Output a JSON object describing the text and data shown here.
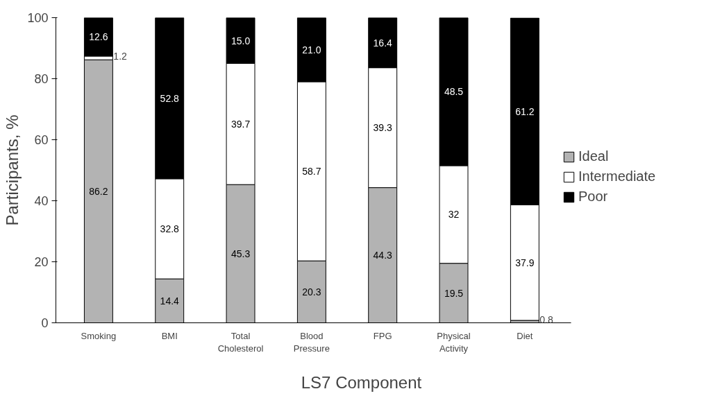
{
  "chart_data": {
    "type": "bar",
    "stacked": true,
    "xlabel": "LS7 Component",
    "ylabel": "Participants, %",
    "categories": [
      "Smoking",
      "BMI",
      "Total\nCholesterol",
      "Blood\nPressure",
      "FPG",
      "Physical\nActivity",
      "Diet"
    ],
    "series": [
      {
        "name": "Ideal",
        "color": "#b3b3b3",
        "values": [
          86.2,
          14.4,
          45.3,
          20.3,
          44.3,
          19.5,
          0.8
        ],
        "value_labels": [
          "86.2",
          "14.4",
          "45.3",
          "20.3",
          "44.3",
          "19.5",
          "0.8"
        ]
      },
      {
        "name": "Intermediate",
        "color": "#ffffff",
        "values": [
          1.2,
          32.8,
          39.7,
          58.7,
          39.3,
          32,
          37.9
        ],
        "value_labels": [
          "1.2",
          "32.8",
          "39.7",
          "58.7",
          "39.3",
          "32",
          "37.9"
        ]
      },
      {
        "name": "Poor",
        "color": "#000000",
        "values": [
          12.6,
          52.8,
          15.0,
          21.0,
          16.4,
          48.5,
          61.2
        ],
        "value_labels": [
          "12.6",
          "52.8",
          "15.0",
          "21.0",
          "16.4",
          "48.5",
          "61.2"
        ]
      }
    ],
    "ylim": [
      0,
      100
    ],
    "yticks": [
      0,
      20,
      40,
      60,
      80,
      100
    ],
    "grid": false,
    "legend": "right"
  }
}
